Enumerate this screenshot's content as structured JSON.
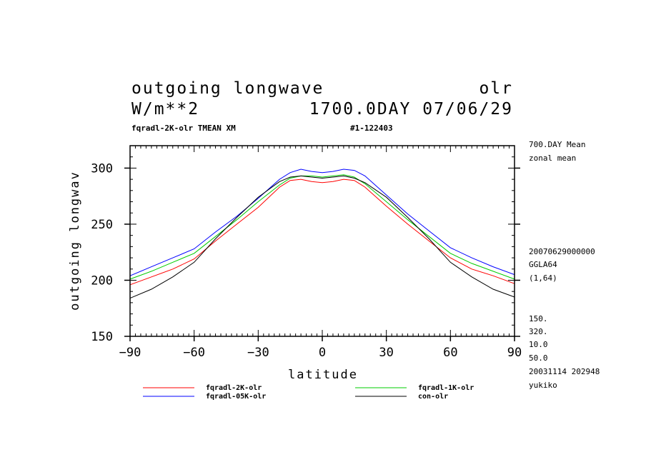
{
  "header": {
    "title_left": "outgoing longwave",
    "title_right": "olr",
    "units": "W/m**2",
    "time_info": "1700.0DAY 07/06/29",
    "subtitle_left": "fqradl-2K-olr TMEAN XM",
    "subtitle_right": "#1-122403"
  },
  "side_info": {
    "line1": "700.DAY Mean",
    "line2": "zonal mean",
    "line3": "20070629000000",
    "line4": "GGLA64",
    "line5": "(1,64)",
    "line6": "150.",
    "line7": "320.",
    "line8": "10.0",
    "line9": "50.0",
    "line10": "20031114 202948",
    "line11": "yukiko"
  },
  "colors": {
    "red": "#ff0000",
    "green": "#00cc00",
    "blue": "#0000ff",
    "black": "#000000"
  },
  "chart_data": {
    "type": "line",
    "title": "outgoing longwave",
    "xlabel": "latitude",
    "ylabel": "outgoing longwav",
    "xlim": [
      -90,
      90
    ],
    "ylim": [
      150,
      320
    ],
    "xticks": [
      -90,
      -60,
      -30,
      0,
      30,
      60,
      90
    ],
    "yticks": [
      150,
      200,
      250,
      300
    ],
    "x_tick_labels": [
      "−90",
      "−60",
      "−30",
      "0",
      "30",
      "60",
      "90"
    ],
    "y_tick_labels": [
      "150",
      "200",
      "250",
      "300"
    ],
    "x": [
      -90,
      -80,
      -70,
      -60,
      -50,
      -40,
      -30,
      -20,
      -15,
      -10,
      -5,
      0,
      5,
      10,
      15,
      20,
      30,
      40,
      50,
      60,
      70,
      80,
      90
    ],
    "series": [
      {
        "name": "fqradl-2K-olr",
        "color": "#ff0000",
        "values": [
          196,
          203,
          210,
          219,
          235,
          250,
          265,
          283,
          289,
          290,
          288,
          287,
          288,
          290,
          289,
          283,
          266,
          250,
          235,
          220,
          210,
          204,
          197
        ]
      },
      {
        "name": "fqradl-1K-olr",
        "color": "#00cc00",
        "values": [
          201,
          208,
          216,
          224,
          239,
          254,
          270,
          285,
          291,
          293,
          293,
          292,
          293,
          294,
          292,
          286,
          270,
          254,
          239,
          224,
          215,
          208,
          201
        ]
      },
      {
        "name": "fqradl-05K-olr",
        "color": "#0000ff",
        "values": [
          204,
          212,
          220,
          228,
          243,
          257,
          273,
          290,
          296,
          299,
          297,
          296,
          297,
          299,
          298,
          293,
          276,
          259,
          244,
          229,
          220,
          212,
          205
        ]
      },
      {
        "name": "con-olr",
        "color": "#000000",
        "values": [
          184,
          192,
          203,
          216,
          237,
          256,
          274,
          288,
          292,
          293,
          292,
          291,
          292,
          293,
          291,
          287,
          274,
          256,
          237,
          216,
          203,
          192,
          185
        ]
      }
    ],
    "legend": "bottom"
  }
}
